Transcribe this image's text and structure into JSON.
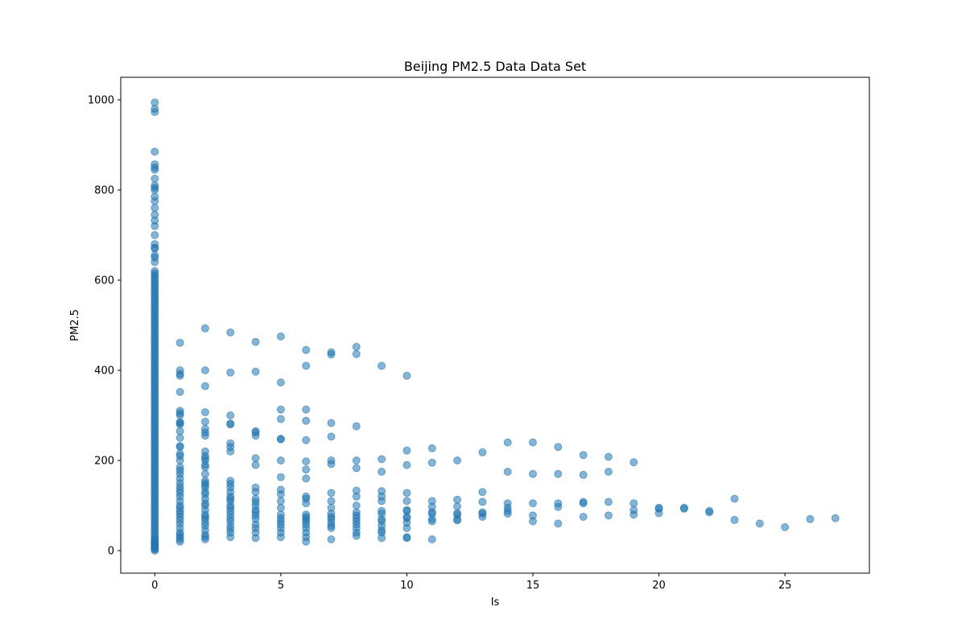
{
  "chart_data": {
    "type": "scatter",
    "title": "Beijing PM2.5 Data Data Set",
    "xlabel": "Is",
    "ylabel": "PM2.5",
    "xlim": [
      -1.35,
      28.35
    ],
    "ylim": [
      -50,
      1050
    ],
    "xticks": [
      0,
      5,
      10,
      15,
      20,
      25
    ],
    "yticks": [
      0,
      200,
      400,
      600,
      800,
      1000
    ],
    "grid": false,
    "marker_color": "#1f77b4",
    "marker_alpha": 0.55,
    "columns": [
      {
        "x": 0,
        "y": [
          0,
          3,
          5,
          8,
          10,
          12,
          15,
          18,
          20,
          23,
          26,
          30,
          35,
          40,
          45,
          50,
          55,
          60,
          65,
          70,
          75,
          80,
          85,
          90,
          95,
          100,
          105,
          110,
          115,
          120,
          125,
          130,
          135,
          140,
          145,
          150,
          155,
          160,
          165,
          170,
          175,
          180,
          185,
          190,
          195,
          200,
          205,
          210,
          215,
          220,
          225,
          230,
          235,
          240,
          245,
          250,
          255,
          260,
          265,
          270,
          275,
          280,
          285,
          290,
          295,
          300,
          305,
          310,
          315,
          320,
          325,
          330,
          335,
          340,
          345,
          350,
          355,
          360,
          365,
          370,
          375,
          380,
          385,
          390,
          395,
          400,
          405,
          410,
          415,
          420,
          425,
          430,
          435,
          440,
          445,
          450,
          455,
          460,
          465,
          470,
          475,
          480,
          485,
          490,
          495,
          500,
          505,
          510,
          515,
          520,
          525,
          530,
          535,
          540,
          545,
          550,
          555,
          560,
          565,
          570,
          575,
          580,
          585,
          590,
          595,
          600,
          605,
          610,
          615,
          620,
          640,
          650,
          655,
          670,
          672,
          680,
          700,
          720,
          732,
          745,
          760,
          775,
          785,
          800,
          805,
          810,
          825,
          845,
          850,
          857,
          885,
          973,
          980,
          994
        ]
      },
      {
        "x": 1,
        "y": [
          20,
          25,
          30,
          35,
          40,
          50,
          60,
          68,
          75,
          82,
          88,
          95,
          100,
          110,
          120,
          128,
          135,
          142,
          150,
          160,
          170,
          178,
          185,
          200,
          210,
          215,
          230,
          232,
          250,
          265,
          280,
          283,
          285,
          300,
          305,
          310,
          352,
          388,
          392,
          400,
          461
        ]
      },
      {
        "x": 2,
        "y": [
          25,
          30,
          35,
          45,
          55,
          62,
          70,
          75,
          80,
          90,
          100,
          105,
          115,
          125,
          130,
          140,
          145,
          150,
          155,
          170,
          185,
          190,
          200,
          205,
          210,
          220,
          255,
          262,
          270,
          286,
          307,
          365,
          400,
          493
        ]
      },
      {
        "x": 3,
        "y": [
          30,
          40,
          48,
          55,
          65,
          72,
          80,
          88,
          95,
          100,
          110,
          115,
          120,
          130,
          140,
          148,
          155,
          220,
          230,
          238,
          280,
          282,
          300,
          395,
          484
        ]
      },
      {
        "x": 4,
        "y": [
          28,
          40,
          50,
          58,
          70,
          78,
          85,
          90,
          100,
          108,
          115,
          130,
          140,
          190,
          205,
          255,
          262,
          265,
          397,
          463
        ]
      },
      {
        "x": 5,
        "y": [
          30,
          40,
          50,
          58,
          65,
          72,
          80,
          95,
          110,
          125,
          135,
          163,
          200,
          247,
          248,
          292,
          313,
          373,
          475
        ]
      },
      {
        "x": 6,
        "y": [
          20,
          30,
          40,
          50,
          58,
          65,
          70,
          75,
          80,
          105,
          115,
          120,
          160,
          180,
          198,
          245,
          288,
          313,
          410,
          445
        ]
      },
      {
        "x": 7,
        "y": [
          25,
          50,
          55,
          62,
          70,
          75,
          82,
          95,
          110,
          128,
          192,
          200,
          253,
          283,
          435,
          440
        ]
      },
      {
        "x": 8,
        "y": [
          33,
          40,
          50,
          58,
          65,
          72,
          78,
          85,
          100,
          120,
          133,
          183,
          200,
          276,
          436,
          452
        ]
      },
      {
        "x": 9,
        "y": [
          28,
          40,
          45,
          55,
          65,
          70,
          82,
          88,
          110,
          120,
          132,
          175,
          203,
          410
        ]
      },
      {
        "x": 10,
        "y": [
          28,
          30,
          50,
          62,
          72,
          75,
          88,
          90,
          110,
          128,
          190,
          222,
          388
        ]
      },
      {
        "x": 11,
        "y": [
          25,
          65,
          70,
          82,
          85,
          97,
          110,
          195,
          227
        ]
      },
      {
        "x": 12,
        "y": [
          67,
          70,
          80,
          83,
          98,
          113,
          200
        ]
      },
      {
        "x": 13,
        "y": [
          75,
          82,
          85,
          108,
          130,
          218
        ]
      },
      {
        "x": 14,
        "y": [
          82,
          88,
          95,
          105,
          175,
          240
        ]
      },
      {
        "x": 15,
        "y": [
          65,
          78,
          105,
          170,
          240
        ]
      },
      {
        "x": 16,
        "y": [
          60,
          97,
          105,
          170,
          230
        ]
      },
      {
        "x": 17,
        "y": [
          75,
          105,
          108,
          168,
          212
        ]
      },
      {
        "x": 18,
        "y": [
          78,
          108,
          175,
          208
        ]
      },
      {
        "x": 19,
        "y": [
          80,
          90,
          105,
          196
        ]
      },
      {
        "x": 20,
        "y": [
          83,
          93,
          95
        ]
      },
      {
        "x": 21,
        "y": [
          93,
          95
        ]
      },
      {
        "x": 22,
        "y": [
          85,
          88
        ]
      },
      {
        "x": 23,
        "y": [
          68,
          115
        ]
      },
      {
        "x": 24,
        "y": [
          60
        ]
      },
      {
        "x": 25,
        "y": [
          52
        ]
      },
      {
        "x": 26,
        "y": [
          70
        ]
      },
      {
        "x": 27,
        "y": [
          72
        ]
      }
    ]
  }
}
